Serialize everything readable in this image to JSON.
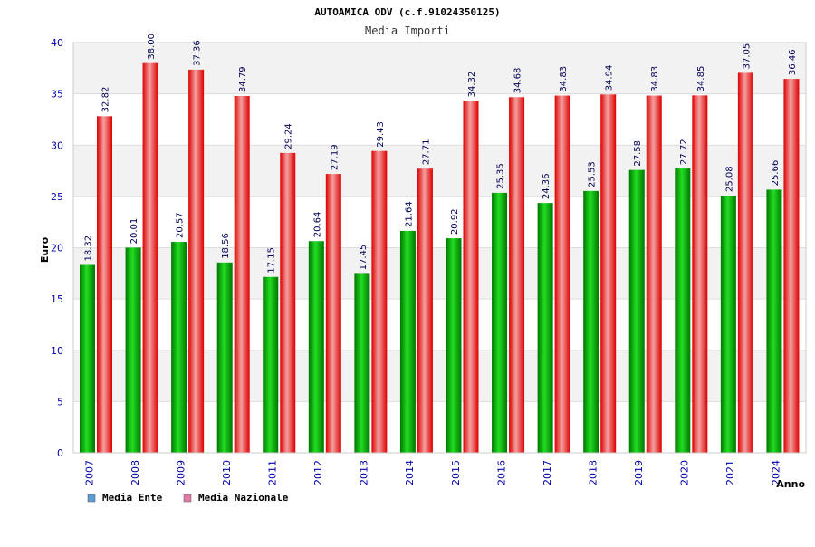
{
  "chart_data": {
    "type": "bar",
    "title": "AUTOAMICA ODV (c.f.91024350125)",
    "subtitle": "Media Importi",
    "xlabel": "Anno",
    "ylabel": "Euro",
    "ylim": [
      0,
      40
    ],
    "yticks": [
      0,
      5,
      10,
      15,
      20,
      25,
      30,
      35,
      40
    ],
    "grid": true,
    "legend_position": "bottom-left",
    "categories": [
      "2007",
      "2008",
      "2009",
      "2010",
      "2011",
      "2012",
      "2013",
      "2014",
      "2015",
      "2016",
      "2017",
      "2018",
      "2019",
      "2020",
      "2021",
      "2024"
    ],
    "series": [
      {
        "name": "Media Ente",
        "legend_color": "#5b9bd5",
        "bar_color_dark": "#007700",
        "bar_color_light": "#22dd22",
        "values": [
          18.32,
          20.01,
          20.57,
          18.56,
          17.15,
          20.64,
          17.45,
          21.64,
          20.92,
          25.35,
          24.36,
          25.53,
          27.58,
          27.72,
          25.08,
          25.66
        ],
        "labels": [
          "18.32",
          "20.01",
          "20.57",
          "18.56",
          "17.15",
          "20.64",
          "17.45",
          "21.64",
          "20.92",
          "25.35",
          "24.36",
          "25.53",
          "27.58",
          "27.72",
          "25.08",
          "25.66"
        ]
      },
      {
        "name": "Media Nazionale",
        "legend_color": "#e07ba8",
        "bar_color_dark": "#dd0000",
        "bar_color_light": "#f4a0a0",
        "values": [
          32.82,
          38.0,
          37.36,
          34.79,
          29.24,
          27.19,
          29.43,
          27.71,
          34.32,
          34.68,
          34.83,
          34.94,
          34.83,
          34.85,
          37.05,
          36.46
        ],
        "labels": [
          "32.82",
          "38.00",
          "37.36",
          "34.79",
          "29.24",
          "27.19",
          "29.43",
          "27.71",
          "34.32",
          "34.68",
          "34.83",
          "34.94",
          "34.83",
          "34.85",
          "37.05",
          "36.46"
        ]
      }
    ],
    "colors": {
      "axis_text": "#0000aa",
      "title_text": "#000000",
      "subtitle_text": "#333333",
      "label_text": "#000055",
      "band_light": "#f2f2f2",
      "band_white": "#ffffff",
      "grid": "#dddddd",
      "axis_line": "#cccccc"
    }
  }
}
